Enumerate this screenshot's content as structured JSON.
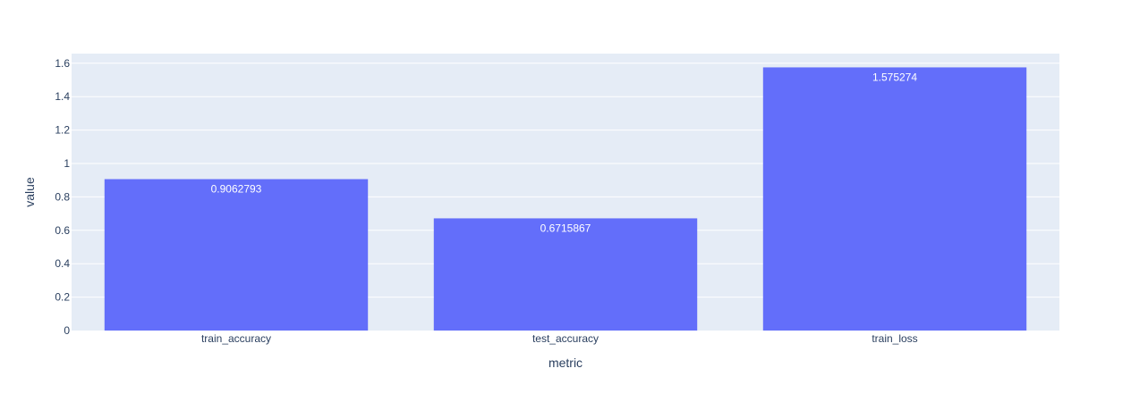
{
  "chart_data": {
    "type": "bar",
    "categories": [
      "train_accuracy",
      "test_accuracy",
      "train_loss"
    ],
    "values": [
      0.9062793,
      0.6715867,
      1.575274
    ],
    "data_labels": [
      "0.9062793",
      "0.6715867",
      "1.575274"
    ],
    "xlabel": "metric",
    "ylabel": "value",
    "ylim": [
      0,
      1.6578
    ],
    "yticks": [
      0,
      0.2,
      0.4,
      0.6,
      0.8,
      1,
      1.2,
      1.4,
      1.6
    ],
    "ytick_labels": [
      "0",
      "0.2",
      "0.4",
      "0.6",
      "0.8",
      "1",
      "1.2",
      "1.4",
      "1.6"
    ],
    "grid": true,
    "colors": {
      "bar": "#636efa",
      "plot_background": "#e5ecf6",
      "grid": "#ffffff",
      "text": "#2a3f5f",
      "bar_label": "#ffffff"
    }
  }
}
